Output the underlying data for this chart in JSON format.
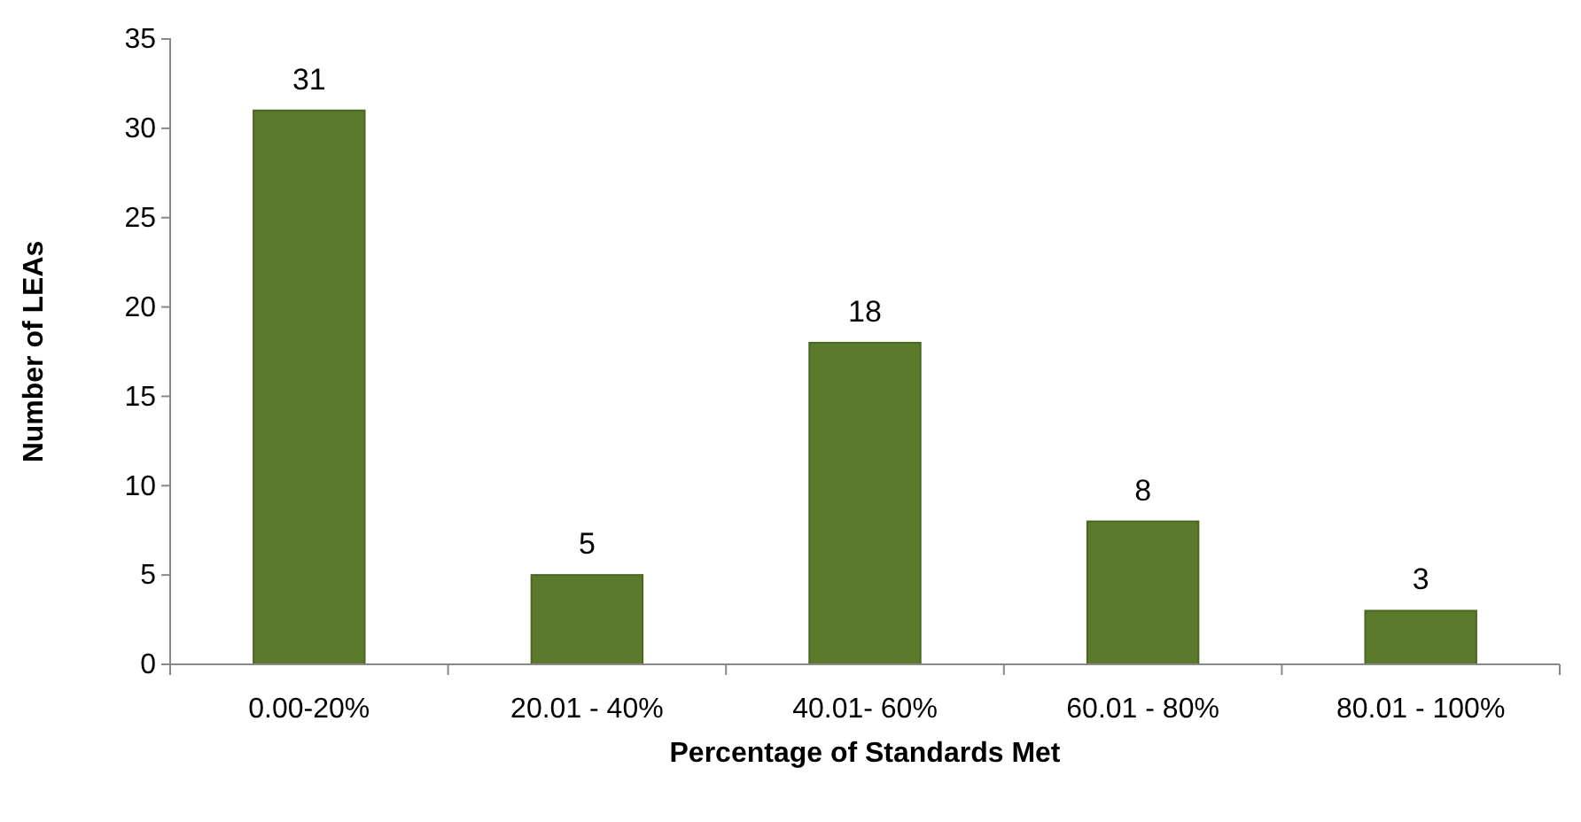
{
  "chart_data": {
    "type": "bar",
    "xlabel": "Percentage of Standards Met",
    "ylabel": "Number of LEAs",
    "categories": [
      "0.00-20%",
      "20.01 - 40%",
      "40.01- 60%",
      "60.01 - 80%",
      "80.01 - 100%"
    ],
    "values": [
      31,
      5,
      18,
      8,
      3
    ],
    "color": "#5b7a2b",
    "ylim": [
      0,
      35
    ],
    "yticks": [
      0,
      5,
      10,
      15,
      20,
      25,
      30,
      35
    ],
    "grid": false,
    "data_labels": true
  }
}
